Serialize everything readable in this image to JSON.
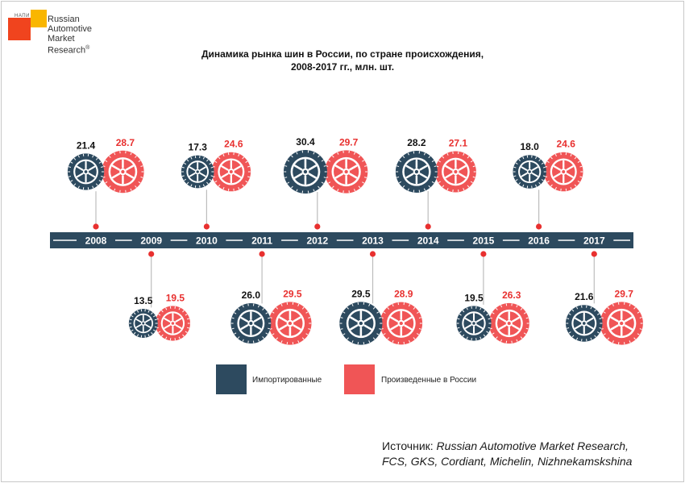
{
  "logo": {
    "small_text": "НАПИ",
    "lines": [
      "Russian",
      "Automotive",
      "Market",
      "Research"
    ],
    "registered": "®"
  },
  "title": {
    "line1": "Динамика рынка шин в России, по стране происхождения,",
    "line2": "2008-2017 гг., млн. шт."
  },
  "chart_data": {
    "type": "timeline-icon-comparison",
    "title": "Динамика рынка шин в России, по стране происхождения, 2008-2017 гг., млн. шт.",
    "categories": [
      "2008",
      "2009",
      "2010",
      "2011",
      "2012",
      "2013",
      "2014",
      "2015",
      "2016",
      "2017"
    ],
    "series": [
      {
        "name": "Импортированные",
        "color": "#2d4a5f",
        "label_color": "#111111",
        "values": [
          "21.4",
          "13.5",
          "17.3",
          "26.0",
          "30.4",
          "29.5",
          "28.2",
          "19.5",
          "18.0",
          "21.6"
        ]
      },
      {
        "name": "Произведенные в России",
        "color": "#f05556",
        "label_color": "#e8302f",
        "values": [
          "28.7",
          "19.5",
          "24.6",
          "29.5",
          "29.7",
          "28.9",
          "27.1",
          "26.3",
          "24.6",
          "29.7"
        ]
      }
    ],
    "placement": [
      "above",
      "below",
      "above",
      "below",
      "above",
      "below",
      "above",
      "below",
      "above",
      "below"
    ],
    "bar_color": "#2d4a5f",
    "connector_dot_color": "#e8302f"
  },
  "legend": {
    "items": [
      {
        "label": "Импортированные",
        "color": "#2d4a5f"
      },
      {
        "label": "Произведенные в России",
        "color": "#f05556"
      }
    ]
  },
  "source": {
    "prefix": "Источник: ",
    "line1": "Russian Automotive Market Research,",
    "line2": "FCS, GKS, Cordiant, Michelin, Nizhnekamskshina"
  }
}
